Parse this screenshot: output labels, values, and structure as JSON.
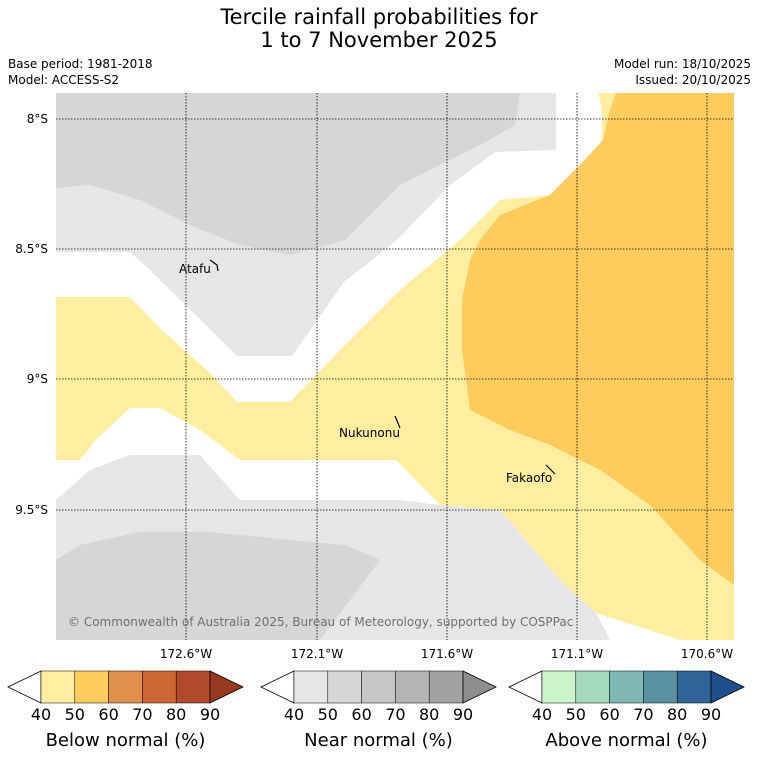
{
  "title": {
    "line1": "Tercile rainfall probabilities for",
    "line2": "1 to 7 November 2025"
  },
  "meta": {
    "base_period": "Base period: 1981-2018",
    "model": "Model: ACCESS-S2",
    "model_run": "Model run: 18/10/2025",
    "issued": "Issued: 20/10/2025"
  },
  "map": {
    "lat_labels": [
      "8°S",
      "8.5°S",
      "9°S",
      "9.5°S"
    ],
    "lon_labels": [
      "172.6°W",
      "172.1°W",
      "171.6°W",
      "171.1°W",
      "170.6°W"
    ],
    "places": [
      "Atafu",
      "Nukunonu",
      "Fakaofo"
    ],
    "copyright": "© Commonwealth of Australia 2025, Bureau of Meteorology, supported by COSPPac"
  },
  "colorbars": [
    {
      "label": "Below normal (%)",
      "ticks": [
        "40",
        "50",
        "60",
        "70",
        "80",
        "90"
      ],
      "colors": [
        "#ffeda0",
        "#fecc5c",
        "#e0904a",
        "#cc6633",
        "#b04a2a",
        "#963a1f"
      ]
    },
    {
      "label": "Near normal (%)",
      "ticks": [
        "40",
        "50",
        "60",
        "70",
        "80",
        "90"
      ],
      "colors": [
        "#e6e6e6",
        "#d6d6d6",
        "#c6c6c6",
        "#b4b4b4",
        "#a2a2a2",
        "#8e8e8e"
      ]
    },
    {
      "label": "Above normal (%)",
      "ticks": [
        "40",
        "50",
        "60",
        "70",
        "80",
        "90"
      ],
      "colors": [
        "#ccf5cc",
        "#a3d9bd",
        "#7fb8b3",
        "#5991a0",
        "#2f6496",
        "#1f4f8c"
      ]
    }
  ],
  "palette": {
    "below_40": "#ffeda0",
    "below_50": "#fecc5c",
    "near_40": "#e6e6e6",
    "near_50": "#d6d6d6"
  }
}
